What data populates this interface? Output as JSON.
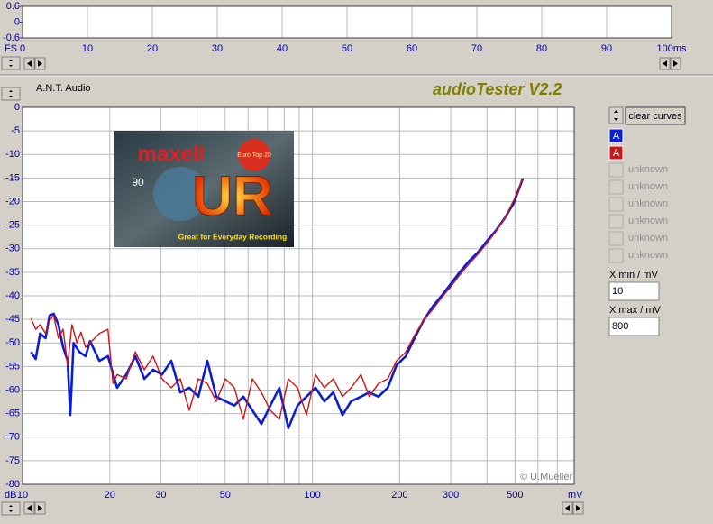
{
  "app": {
    "vendor": "A.N.T. Audio",
    "title": "audioTester V2.2",
    "clear_button": "clear curves",
    "xmin_label": "X min / mV",
    "xmax_label": "X max / mV"
  },
  "image": {
    "brand": "maxell",
    "model": "UR",
    "length": "90",
    "badge": "Euro Top 20",
    "slogan": "Great for Everyday Recording"
  },
  "chart_data": [
    {
      "type": "line",
      "ylabel": "FS",
      "xlim": [
        0,
        100
      ],
      "ylim": [
        -0.6,
        0.6
      ],
      "xticks": [
        0,
        10,
        20,
        30,
        40,
        50,
        60,
        70,
        80,
        90,
        {
          "value": 100,
          "label": "100ms"
        }
      ],
      "yticks": [
        0.6,
        0,
        -0.6
      ],
      "grid": "x"
    },
    {
      "type": "line",
      "xscale": "log",
      "xlabel": "mV",
      "ylabel": "dB",
      "xlim": [
        10,
        800
      ],
      "ylim": [
        -80,
        0
      ],
      "xticks": [
        10,
        20,
        30,
        50,
        100,
        200,
        300,
        500
      ],
      "x_minor_ticks": [
        40,
        60,
        70,
        80,
        90,
        400,
        600,
        700,
        800
      ],
      "yticks": [
        0,
        -5,
        -10,
        -15,
        -20,
        -25,
        -30,
        -35,
        -40,
        -45,
        -50,
        -55,
        -60,
        -65,
        -70,
        -75,
        -80
      ],
      "grid": "both",
      "annotation": "© U.Mueller",
      "legend_placeholders": [
        "unknown",
        "unknown",
        "unknown",
        "unknown",
        "unknown",
        "unknown"
      ],
      "series": [
        {
          "name": "A",
          "color": "#0a1ed2",
          "x": [
            10.7,
            11.1,
            11.5,
            12.0,
            12.4,
            12.8,
            13.3,
            13.8,
            14.3,
            14.6,
            15.0,
            15.7,
            16.5,
            17.1,
            18.4,
            19.7,
            21.2,
            22.8,
            24.5,
            26.3,
            28.2,
            30.3,
            32.6,
            35.0,
            37.6,
            40.4,
            43.4,
            46.6,
            50.1,
            53.8,
            57.8,
            62.1,
            66.7,
            71.6,
            76.9,
            82.6,
            88.8,
            95.4,
            102.5,
            110,
            118,
            127,
            136,
            147,
            157,
            169,
            182,
            195,
            210,
            225,
            242,
            260,
            279,
            300,
            322,
            346,
            372,
            399,
            429,
            461,
            495,
            532
          ],
          "values": [
            -51.9,
            -53.4,
            -48.0,
            -49.0,
            -44.2,
            -43.8,
            -46.1,
            -50.9,
            -53.8,
            -65.3,
            -50.0,
            -51.9,
            -52.8,
            -49.6,
            -53.8,
            -52.8,
            -59.5,
            -56.7,
            -52.8,
            -57.6,
            -55.7,
            -56.7,
            -53.8,
            -60.5,
            -59.5,
            -61.4,
            -53.8,
            -61.4,
            -62.4,
            -63.3,
            -61.4,
            -64.3,
            -67.2,
            -63.3,
            -59.5,
            -68.1,
            -63.3,
            -61.4,
            -59.5,
            -62.4,
            -60.5,
            -65.3,
            -62.4,
            -61.4,
            -60.5,
            -61.4,
            -59.5,
            -54.7,
            -52.8,
            -49.0,
            -45.2,
            -42.3,
            -40.0,
            -37.5,
            -35.0,
            -32.7,
            -30.8,
            -28.5,
            -26.2,
            -23.5,
            -20.3,
            -15.1
          ]
        },
        {
          "name": "A",
          "color": "#d21414",
          "x": [
            10.7,
            11.1,
            11.5,
            12.0,
            12.4,
            12.8,
            13.3,
            13.8,
            14.3,
            14.8,
            15.4,
            15.9,
            16.5,
            17.1,
            18.4,
            19.7,
            20.5,
            21.2,
            22.8,
            24.5,
            26.3,
            28.2,
            30.3,
            32.6,
            35.0,
            37.6,
            40.4,
            43.4,
            46.6,
            50.1,
            53.8,
            57.8,
            62.1,
            66.7,
            71.6,
            76.9,
            82.6,
            88.8,
            95.4,
            102.5,
            110,
            118,
            127,
            136,
            147,
            157,
            169,
            182,
            195,
            210,
            225,
            242,
            260,
            279,
            300,
            322,
            346,
            372,
            399,
            429,
            461,
            495,
            532
          ],
          "values": [
            -44.8,
            -47.1,
            -46.1,
            -48.0,
            -45.2,
            -44.2,
            -49.0,
            -47.1,
            -54.7,
            -46.1,
            -50.0,
            -47.7,
            -50.9,
            -50.0,
            -48.0,
            -47.1,
            -58.6,
            -56.7,
            -57.6,
            -51.9,
            -55.7,
            -52.8,
            -57.6,
            -59.5,
            -57.6,
            -64.3,
            -57.6,
            -58.6,
            -62.4,
            -57.6,
            -59.5,
            -66.2,
            -57.6,
            -60.5,
            -64.3,
            -66.2,
            -57.6,
            -59.5,
            -65.3,
            -56.7,
            -59.5,
            -57.6,
            -61.4,
            -59.5,
            -56.7,
            -61.4,
            -58.6,
            -57.6,
            -53.8,
            -51.9,
            -48.4,
            -45.2,
            -42.9,
            -40.4,
            -38.1,
            -35.6,
            -33.3,
            -31.2,
            -28.9,
            -26.4,
            -23.5,
            -19.7,
            -15.1
          ]
        }
      ]
    }
  ]
}
